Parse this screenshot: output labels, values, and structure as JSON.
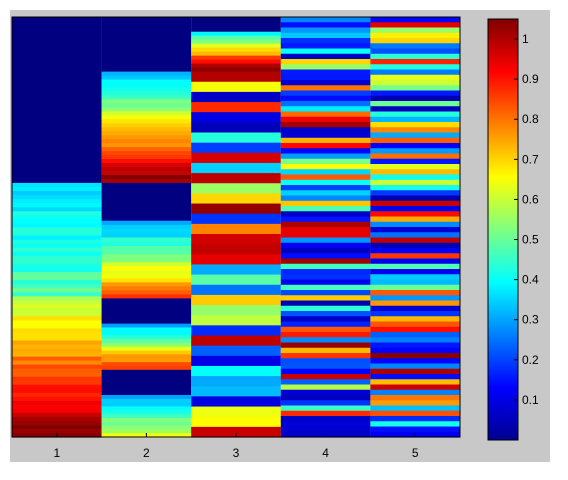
{
  "chart_data": {
    "type": "heatmap",
    "title": "",
    "xlabel": "",
    "ylabel": "",
    "colormap": "jet",
    "x_ticks": [
      "1",
      "2",
      "3",
      "4",
      "5"
    ],
    "colorbar": {
      "range": [
        0,
        1.05
      ],
      "ticks": [
        "0.1",
        "0.2",
        "0.3",
        "0.4",
        "0.5",
        "0.6",
        "0.7",
        "0.8",
        "0.9",
        "1"
      ]
    },
    "columns": [
      {
        "x": "1",
        "blocks": [
          {
            "level": 0.0,
            "span": 0.395
          },
          {
            "ramp": [
              0.35,
              0.45
            ],
            "span": 0.27
          },
          {
            "ramp": [
              0.55,
              1.0
            ],
            "span": 0.335
          }
        ]
      },
      {
        "x": "2",
        "blocks": [
          {
            "level": 0.0,
            "span": 0.13
          },
          {
            "ramp": [
              0.3,
              1.0
            ],
            "span": 0.265
          },
          {
            "level": 0.0,
            "span": 0.09
          },
          {
            "ramp": [
              0.3,
              0.45
            ],
            "span": 0.08
          },
          {
            "ramp": [
              0.5,
              0.8
            ],
            "span": 0.105
          },
          {
            "level": 0.0,
            "span": 0.06
          },
          {
            "ramp": [
              0.3,
              0.85
            ],
            "span": 0.11
          },
          {
            "level": 0.0,
            "span": 0.06
          },
          {
            "ramp": [
              0.3,
              0.6
            ],
            "span": 0.1
          }
        ]
      },
      {
        "x": "3",
        "blocks": [
          {
            "level": 0.0,
            "span": 0.035
          },
          {
            "ramp": [
              0.4,
              1.0
            ],
            "span": 0.095
          },
          {
            "stripes": 36,
            "span": 0.87
          }
        ]
      },
      {
        "x": "4",
        "blocks": [
          {
            "stripes": 80,
            "span": 1.0
          }
        ]
      },
      {
        "x": "5",
        "blocks": [
          {
            "stripes": 80,
            "span": 1.0
          }
        ]
      }
    ]
  }
}
